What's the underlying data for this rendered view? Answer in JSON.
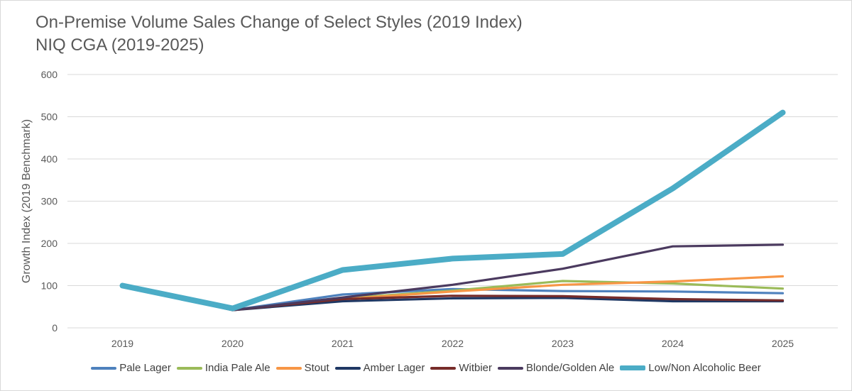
{
  "chart_data": {
    "type": "line",
    "title": "On-Premise Volume Sales Change of Select Styles (2019 Index)",
    "subtitle": "NIQ CGA (2019-2025)",
    "xlabel": "",
    "ylabel": "Growth Index (2019 Benchmark)",
    "ylim": [
      0,
      600
    ],
    "yticks": [
      0,
      100,
      200,
      300,
      400,
      500,
      600
    ],
    "grid": true,
    "legend_position": "bottom",
    "categories": [
      "2019",
      "2020",
      "2021",
      "2022",
      "2023",
      "2024",
      "2025"
    ],
    "series": [
      {
        "name": "Pale Lager",
        "color": "#4e81bd",
        "values": [
          100,
          42,
          79,
          92,
          87,
          86,
          82
        ]
      },
      {
        "name": "India Pale Ale",
        "color": "#9bbb59",
        "values": [
          100,
          42,
          70,
          88,
          111,
          105,
          93
        ]
      },
      {
        "name": "Stout",
        "color": "#f79646",
        "values": [
          100,
          42,
          68,
          86,
          102,
          110,
          122
        ]
      },
      {
        "name": "Amber Lager",
        "color": "#1f3864",
        "values": [
          100,
          42,
          63,
          70,
          71,
          63,
          63
        ]
      },
      {
        "name": "Witbier",
        "color": "#772c2a",
        "values": [
          100,
          42,
          68,
          76,
          75,
          68,
          65
        ]
      },
      {
        "name": "Blonde/Golden Ale",
        "color": "#4b3a5f",
        "values": [
          100,
          42,
          72,
          102,
          140,
          193,
          197
        ]
      },
      {
        "name": "Low/Non Alcoholic Beer",
        "color": "#4bacc6",
        "values": [
          100,
          46,
          137,
          164,
          175,
          330,
          510
        ]
      }
    ]
  }
}
